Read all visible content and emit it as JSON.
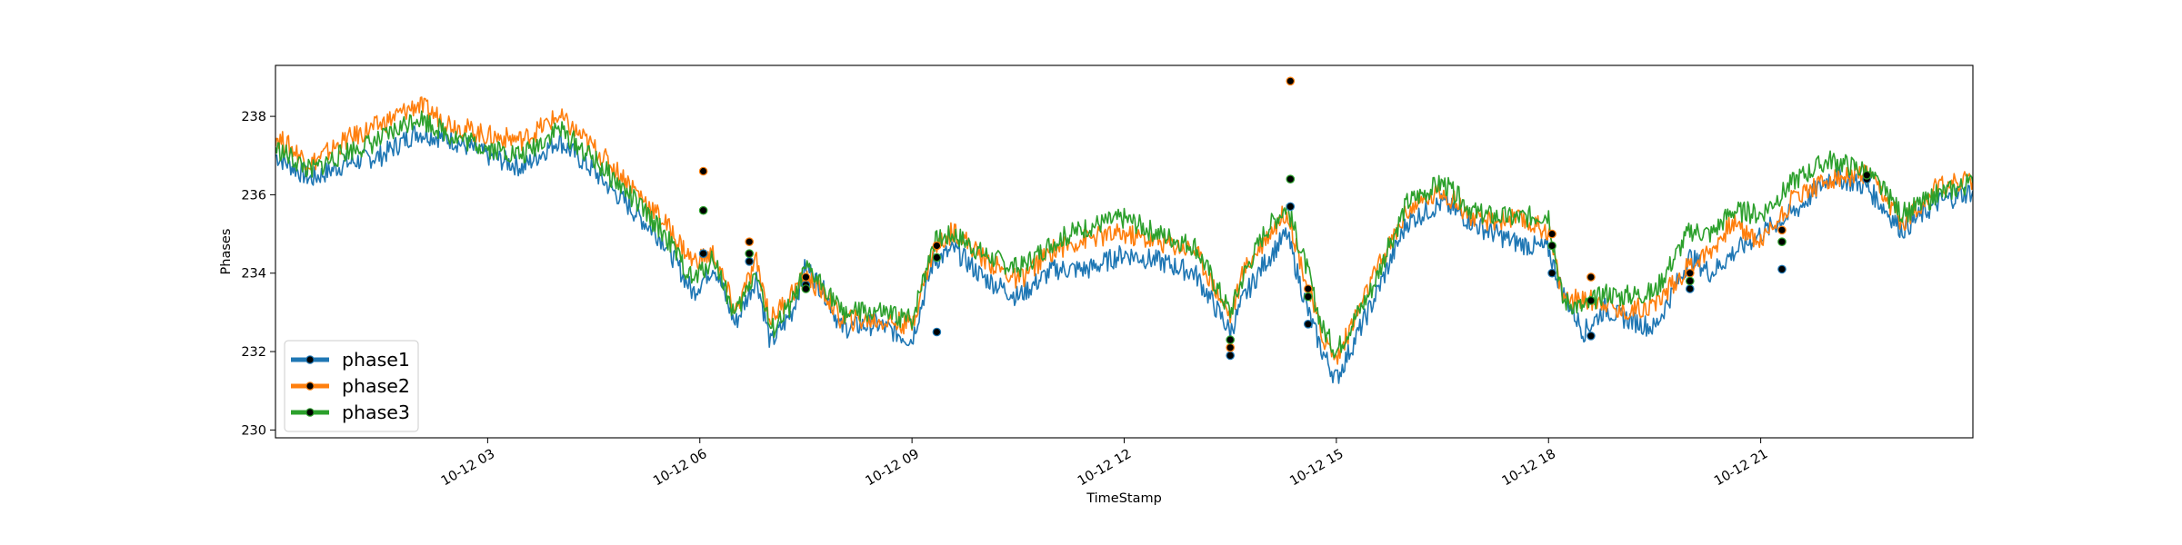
{
  "chart_data": {
    "type": "line",
    "title": "",
    "xlabel": "TimeStamp",
    "ylabel": "Phases",
    "xlim": [
      "10-12 00:00",
      "10-12 24:00"
    ],
    "ylim": [
      229.8,
      239.3
    ],
    "grid": false,
    "legend_position": "lower-left",
    "x_ticks": [
      {
        "label": "10-12 03",
        "hour": 3
      },
      {
        "label": "10-12 06",
        "hour": 6
      },
      {
        "label": "10-12 09",
        "hour": 9
      },
      {
        "label": "10-12 12",
        "hour": 12
      },
      {
        "label": "10-12 15",
        "hour": 15
      },
      {
        "label": "10-12 18",
        "hour": 18
      },
      {
        "label": "10-12 21",
        "hour": 21
      }
    ],
    "y_ticks": [
      230,
      232,
      234,
      236,
      238
    ],
    "x_hours": [
      0,
      0.5,
      1,
      1.5,
      2,
      2.5,
      3,
      3.5,
      4,
      4.5,
      5,
      5.5,
      5.9,
      6.2,
      6.5,
      6.8,
      7,
      7.3,
      7.5,
      7.8,
      8,
      8.5,
      9,
      9.3,
      9.6,
      10,
      10.5,
      11,
      11.5,
      12,
      12.5,
      13,
      13.5,
      13.7,
      14,
      14.3,
      14.6,
      14.8,
      15,
      15.5,
      16,
      16.5,
      17,
      17.5,
      18,
      18.2,
      18.5,
      18.8,
      19,
      19.5,
      20,
      20.3,
      20.6,
      21,
      21.5,
      22,
      22.5,
      23,
      23.5,
      24
    ],
    "series": [
      {
        "name": "phase1",
        "color": "#1f77b4",
        "values": [
          237.0,
          236.4,
          236.8,
          237.0,
          237.6,
          237.4,
          237.0,
          236.7,
          237.4,
          236.6,
          235.7,
          234.8,
          233.5,
          234.2,
          232.7,
          233.9,
          232.2,
          233.0,
          234.2,
          233.4,
          232.6,
          232.7,
          232.3,
          234.3,
          234.6,
          233.9,
          233.4,
          234.1,
          234.1,
          234.5,
          234.3,
          234.0,
          232.5,
          233.4,
          234.3,
          235.0,
          233.0,
          232.0,
          231.3,
          233.2,
          235.3,
          235.8,
          235.2,
          234.8,
          234.6,
          233.5,
          232.5,
          233.1,
          232.9,
          232.6,
          234.4,
          234.0,
          234.5,
          235.0,
          235.6,
          236.5,
          236.2,
          235.1,
          235.8,
          236.1
        ]
      },
      {
        "name": "phase2",
        "color": "#ff7f0e",
        "values": [
          237.5,
          236.8,
          237.4,
          237.8,
          238.3,
          237.8,
          237.5,
          237.4,
          238.0,
          237.2,
          236.3,
          235.3,
          234.3,
          234.5,
          233.0,
          234.3,
          232.8,
          233.5,
          233.9,
          233.4,
          232.8,
          232.8,
          232.7,
          234.6,
          235.1,
          234.4,
          233.8,
          234.6,
          234.9,
          235.0,
          234.8,
          234.6,
          232.9,
          234.1,
          234.9,
          235.6,
          233.6,
          232.4,
          231.8,
          233.8,
          235.6,
          236.1,
          235.3,
          235.4,
          235.1,
          233.4,
          233.3,
          233.3,
          233.0,
          233.2,
          234.2,
          234.6,
          235.3,
          234.8,
          236.0,
          236.4,
          236.5,
          235.3,
          236.2,
          236.4
        ]
      },
      {
        "name": "phase3",
        "color": "#2ca02c",
        "values": [
          237.2,
          236.6,
          237.1,
          237.4,
          238.0,
          237.5,
          237.2,
          237.0,
          237.7,
          236.9,
          236.0,
          235.0,
          233.8,
          234.4,
          232.9,
          234.1,
          232.5,
          233.2,
          234.1,
          233.6,
          233.0,
          233.0,
          232.8,
          234.8,
          235.0,
          234.5,
          234.1,
          234.8,
          235.2,
          235.4,
          235.0,
          234.7,
          233.0,
          234.0,
          235.1,
          235.7,
          234.0,
          232.6,
          232.0,
          233.6,
          235.8,
          236.3,
          235.5,
          235.4,
          235.5,
          233.3,
          233.1,
          233.5,
          233.4,
          233.5,
          235.1,
          235.0,
          235.6,
          235.5,
          236.4,
          236.9,
          236.6,
          235.5,
          236.0,
          236.3
        ]
      }
    ],
    "markers": [
      {
        "hour": 6.05,
        "values": [
          234.5,
          236.6,
          235.6
        ]
      },
      {
        "hour": 6.7,
        "values": [
          234.3,
          234.8,
          234.5
        ]
      },
      {
        "hour": 7.5,
        "values": [
          233.7,
          233.9,
          233.6
        ]
      },
      {
        "hour": 9.35,
        "values": [
          232.5,
          234.7,
          234.4
        ]
      },
      {
        "hour": 13.5,
        "values": [
          231.9,
          232.1,
          232.3
        ]
      },
      {
        "hour": 14.35,
        "values": [
          235.7,
          238.9,
          236.4
        ]
      },
      {
        "hour": 14.6,
        "values": [
          232.7,
          233.6,
          233.4
        ]
      },
      {
        "hour": 18.05,
        "values": [
          234.0,
          235.0,
          234.7
        ]
      },
      {
        "hour": 18.6,
        "values": [
          232.4,
          233.9,
          233.3
        ]
      },
      {
        "hour": 20.0,
        "values": [
          233.6,
          234.0,
          233.8
        ]
      },
      {
        "hour": 21.3,
        "values": [
          234.1,
          235.1,
          234.8
        ]
      },
      {
        "hour": 22.5,
        "values": [
          236.4,
          236.5,
          236.5
        ]
      }
    ]
  }
}
